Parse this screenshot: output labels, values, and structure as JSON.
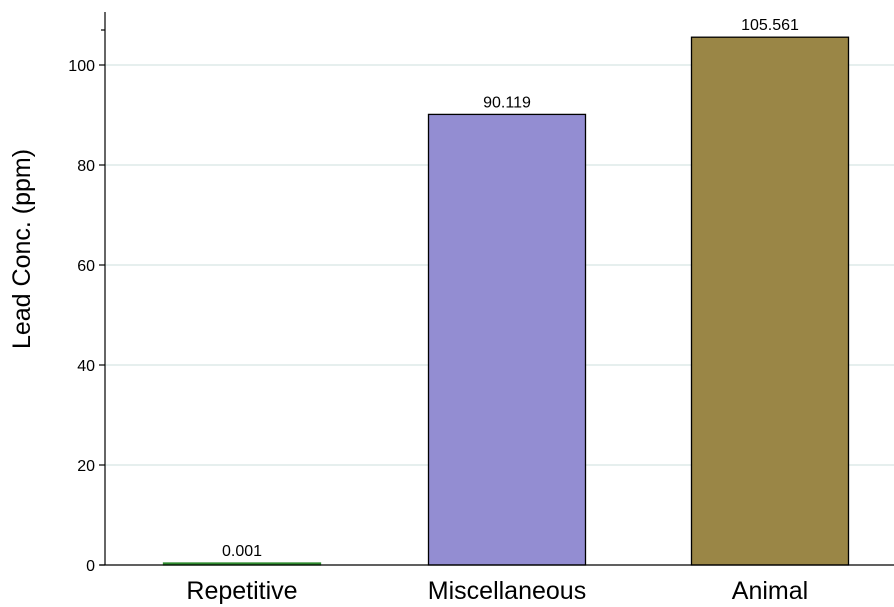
{
  "chart_data": {
    "type": "bar",
    "categories": [
      "Repetitive",
      "Miscellaneous",
      "Animal"
    ],
    "values": [
      0.001,
      90.119,
      105.561
    ],
    "value_labels": [
      "0.001",
      "90.119",
      "105.561"
    ],
    "colors": [
      "#2e8b2e",
      "#938dd2",
      "#9a8646"
    ],
    "title": "",
    "xlabel": "",
    "ylabel": "Lead Conc. (ppm)",
    "ylim": [
      0,
      110
    ],
    "yticks": [
      0,
      20,
      40,
      60,
      80,
      100
    ],
    "grid": true,
    "grid_color": "#e6efee",
    "bar_edge_color": "#000000",
    "legend": "none"
  }
}
